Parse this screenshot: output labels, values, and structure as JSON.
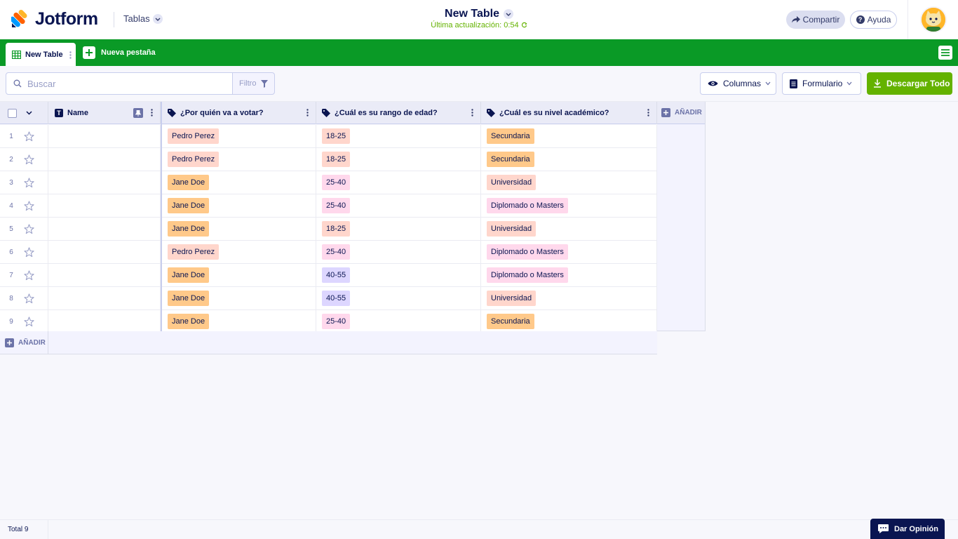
{
  "header": {
    "brand": "Jotform",
    "product_label": "Tablas",
    "table_title": "New Table",
    "last_updated": "Última actualización: 0:54",
    "share_label": "Compartir",
    "help_label": "Ayuda"
  },
  "tabs": {
    "active_label": "New Table",
    "new_tab_label": "Nueva pestaña"
  },
  "toolbar": {
    "search_placeholder": "Buscar",
    "filter_label": "Filtro",
    "columns_label": "Columnas",
    "form_label": "Formulario",
    "download_label": "Descargar Todo"
  },
  "table": {
    "columns": [
      {
        "label": "Name",
        "type_icon": "text-type-icon"
      },
      {
        "label": "¿Por quién va a votar?",
        "type_icon": "tag-icon"
      },
      {
        "label": "¿Cuál es su rango de edad?",
        "type_icon": "tag-icon"
      },
      {
        "label": "¿Cuál es su nivel académico?",
        "type_icon": "tag-icon"
      }
    ],
    "add_column_label": "AÑADIR",
    "add_row_label": "AÑADIR",
    "rows": [
      {
        "n": "1",
        "name": "",
        "vote": "Pedro Perez",
        "age": "18-25",
        "edu": "Secundaria"
      },
      {
        "n": "2",
        "name": "",
        "vote": "Pedro Perez",
        "age": "18-25",
        "edu": "Secundaria"
      },
      {
        "n": "3",
        "name": "",
        "vote": "Jane Doe",
        "age": "25-40",
        "edu": "Universidad"
      },
      {
        "n": "4",
        "name": "",
        "vote": "Jane Doe",
        "age": "25-40",
        "edu": "Diplomado o Masters"
      },
      {
        "n": "5",
        "name": "",
        "vote": "Jane Doe",
        "age": "18-25",
        "edu": "Universidad"
      },
      {
        "n": "6",
        "name": "",
        "vote": "Pedro Perez",
        "age": "25-40",
        "edu": "Diplomado o Masters"
      },
      {
        "n": "7",
        "name": "",
        "vote": "Jane Doe",
        "age": "40-55",
        "edu": "Diplomado o Masters"
      },
      {
        "n": "8",
        "name": "",
        "vote": "Jane Doe",
        "age": "40-55",
        "edu": "Universidad"
      },
      {
        "n": "9",
        "name": "",
        "vote": "Jane Doe",
        "age": "25-40",
        "edu": "Secundaria"
      }
    ]
  },
  "chip_colors": {
    "Pedro Perez": "#ffd6cc",
    "Jane Doe": "#ffc98a",
    "18-25": "#ffd6cc",
    "25-40": "#ffd8ec",
    "40-55": "#ddd6ff",
    "Secundaria": "#ffc98a",
    "Universidad": "#ffd6cc",
    "Diplomado o Masters": "#ffd8ec"
  },
  "colors": {
    "brand_green": "#0a9a26",
    "download_green": "#64b200",
    "navy": "#0a1551"
  },
  "footer": {
    "total_label": "Total 9",
    "feedback_label": "Dar Opinión"
  }
}
